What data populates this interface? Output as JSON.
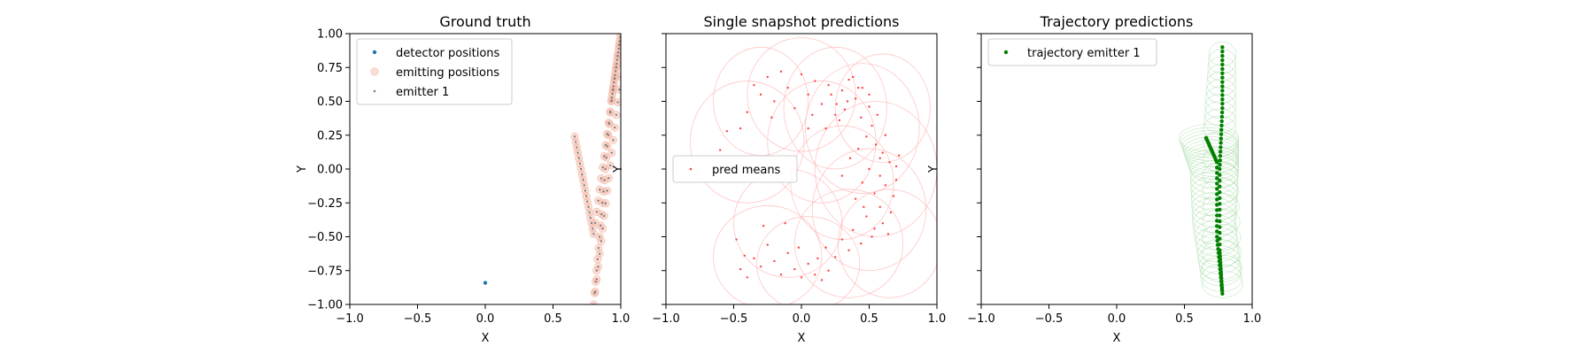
{
  "chart_data": [
    {
      "type": "scatter",
      "title": "Ground truth",
      "xlabel": "X",
      "ylabel": "Y",
      "xlim": [
        -1.0,
        1.0
      ],
      "ylim": [
        -1.0,
        1.0
      ],
      "xticks": [
        "−1.0",
        "−0.5",
        "0.0",
        "0.5",
        "1.0"
      ],
      "yticks": [
        "1.00",
        "0.75",
        "0.50",
        "0.25",
        "0.00",
        "−0.25",
        "−0.50",
        "−0.75",
        "−1.00"
      ],
      "grid": false,
      "legend_position": "upper-left",
      "series": [
        {
          "name": "detector positions",
          "color": "#1f77b4",
          "marker": "dot",
          "points": [
            [
              0.0,
              -0.84
            ]
          ]
        },
        {
          "name": "emitting positions",
          "color": "#f5b9a6",
          "marker": "circle",
          "path": [
            [
              0.66,
              0.24
            ],
            [
              0.8,
              -0.48
            ],
            [
              1.0,
              1.0
            ],
            [
              0.93,
              0.5
            ],
            [
              0.8,
              -1.0
            ],
            [
              1.0,
              0.68
            ]
          ],
          "samples_per_segment": 18
        },
        {
          "name": "emitter 1",
          "color": "#7f7f7f",
          "marker": "small-dot",
          "path": [
            [
              0.66,
              0.24
            ],
            [
              0.8,
              -0.48
            ],
            [
              1.0,
              1.0
            ],
            [
              0.93,
              0.5
            ],
            [
              0.8,
              -1.0
            ],
            [
              1.0,
              0.68
            ]
          ],
          "samples_per_segment": 18
        }
      ]
    },
    {
      "type": "scatter",
      "title": "Single snapshot predictions",
      "xlabel": "X",
      "ylabel": "Y",
      "xlim": [
        -1.0,
        1.0
      ],
      "ylim": [
        -1.0,
        1.0
      ],
      "xticks": [
        "−1.0",
        "−0.5",
        "0.0",
        "0.5",
        "1.0"
      ],
      "yticks": [
        "1.00",
        "0.75",
        "0.50",
        "0.25",
        "0.00",
        "−0.25",
        "−0.50",
        "−0.75",
        "−1.00"
      ],
      "grid": false,
      "legend_position": "center-left",
      "series": [
        {
          "name": "pred means",
          "color": "#ff4040",
          "marker": "small-dot",
          "points": [
            [
              -0.35,
              0.62
            ],
            [
              -0.3,
              0.55
            ],
            [
              -0.25,
              0.68
            ],
            [
              -0.2,
              0.5
            ],
            [
              -0.15,
              0.72
            ],
            [
              -0.1,
              0.6
            ],
            [
              -0.05,
              0.45
            ],
            [
              0.0,
              0.7
            ],
            [
              0.05,
              0.55
            ],
            [
              0.1,
              0.65
            ],
            [
              0.15,
              0.48
            ],
            [
              0.2,
              0.62
            ],
            [
              0.25,
              0.4
            ],
            [
              0.3,
              0.58
            ],
            [
              0.35,
              0.66
            ],
            [
              0.4,
              0.52
            ],
            [
              0.45,
              0.6
            ],
            [
              0.5,
              0.46
            ],
            [
              0.38,
              0.68
            ],
            [
              0.28,
              0.36
            ],
            [
              -0.45,
              0.3
            ],
            [
              -0.4,
              0.42
            ],
            [
              -0.55,
              0.28
            ],
            [
              -0.22,
              0.38
            ],
            [
              0.08,
              0.4
            ],
            [
              0.18,
              0.3
            ],
            [
              0.32,
              0.44
            ],
            [
              0.44,
              0.38
            ],
            [
              0.52,
              0.32
            ],
            [
              0.48,
              0.24
            ],
            [
              0.55,
              0.18
            ],
            [
              0.6,
              0.12
            ],
            [
              0.42,
              0.15
            ],
            [
              0.65,
              0.05
            ],
            [
              0.5,
              0.0
            ],
            [
              0.58,
              -0.05
            ],
            [
              0.7,
              0.02
            ],
            [
              0.45,
              -0.1
            ],
            [
              0.62,
              -0.12
            ],
            [
              0.54,
              -0.18
            ],
            [
              0.68,
              -0.2
            ],
            [
              0.4,
              -0.22
            ],
            [
              0.58,
              -0.28
            ],
            [
              0.66,
              -0.32
            ],
            [
              0.48,
              -0.35
            ],
            [
              0.6,
              -0.4
            ],
            [
              0.38,
              -0.45
            ],
            [
              0.52,
              -0.5
            ],
            [
              0.44,
              -0.55
            ],
            [
              0.35,
              -0.6
            ],
            [
              0.3,
              -0.52
            ],
            [
              0.25,
              -0.65
            ],
            [
              0.2,
              -0.75
            ],
            [
              0.15,
              -0.82
            ],
            [
              0.1,
              -0.78
            ],
            [
              0.05,
              -0.7
            ],
            [
              0.0,
              -0.8
            ],
            [
              -0.05,
              -0.74
            ],
            [
              -0.1,
              -0.62
            ],
            [
              -0.15,
              -0.78
            ],
            [
              -0.2,
              -0.68
            ],
            [
              -0.25,
              -0.56
            ],
            [
              -0.3,
              -0.72
            ],
            [
              -0.35,
              -0.66
            ],
            [
              -0.4,
              -0.8
            ],
            [
              -0.45,
              -0.74
            ],
            [
              -0.48,
              -0.52
            ],
            [
              -0.42,
              -0.64
            ],
            [
              -0.12,
              -0.4
            ],
            [
              -0.28,
              -0.42
            ],
            [
              0.7,
              -0.08
            ],
            [
              0.72,
              0.1
            ],
            [
              0.56,
              0.4
            ],
            [
              0.62,
              0.25
            ],
            [
              0.36,
              0.08
            ],
            [
              0.3,
              -0.05
            ],
            [
              0.46,
              -0.28
            ],
            [
              0.54,
              -0.44
            ],
            [
              0.64,
              -0.48
            ],
            [
              0.18,
              -0.58
            ],
            [
              0.12,
              -0.66
            ],
            [
              -0.02,
              -0.58
            ],
            [
              0.22,
              0.55
            ],
            [
              0.05,
              0.3
            ],
            [
              -0.6,
              0.14
            ],
            [
              0.42,
              0.6
            ],
            [
              0.34,
              0.5
            ],
            [
              0.26,
              0.48
            ],
            [
              0.5,
              0.55
            ],
            [
              0.58,
              0.08
            ]
          ],
          "ellipses": [
            [
              -0.3,
              0.5,
              0.35,
              0.4
            ],
            [
              0.0,
              0.55,
              0.4,
              0.42
            ],
            [
              0.25,
              0.45,
              0.38,
              0.45
            ],
            [
              0.45,
              0.3,
              0.42,
              0.48
            ],
            [
              0.55,
              0.0,
              0.45,
              0.5
            ],
            [
              0.5,
              -0.3,
              0.42,
              0.45
            ],
            [
              0.35,
              -0.55,
              0.4,
              0.4
            ],
            [
              0.05,
              -0.7,
              0.38,
              0.35
            ],
            [
              -0.25,
              -0.65,
              0.4,
              0.38
            ],
            [
              -0.4,
              0.2,
              0.42,
              0.45
            ],
            [
              0.15,
              0.2,
              0.4,
              0.45
            ],
            [
              0.3,
              -0.1,
              0.38,
              0.42
            ],
            [
              -0.1,
              -0.4,
              0.4,
              0.4
            ],
            [
              0.6,
              0.45,
              0.35,
              0.4
            ],
            [
              0.65,
              -0.55,
              0.38,
              0.4
            ]
          ]
        }
      ]
    },
    {
      "type": "scatter",
      "title": "Trajectory predictions",
      "xlabel": "X",
      "ylabel": "Y",
      "xlim": [
        -1.0,
        1.0
      ],
      "ylim": [
        -1.0,
        1.0
      ],
      "xticks": [
        "−1.0",
        "−0.5",
        "0.0",
        "0.5",
        "1.0"
      ],
      "yticks": [
        "1.00",
        "0.75",
        "0.50",
        "0.25",
        "0.00",
        "−0.25",
        "−0.50",
        "−0.75",
        "−1.00"
      ],
      "grid": false,
      "legend_position": "upper-left",
      "series": [
        {
          "name": "trajectory emitter 1",
          "color": "#008000",
          "marker": "dot",
          "path": [
            [
              0.66,
              0.23
            ],
            [
              0.74,
              0.05
            ],
            [
              0.74,
              -0.5
            ],
            [
              0.78,
              -0.92
            ],
            [
              0.76,
              -0.6
            ],
            [
              0.76,
              0.0
            ],
            [
              0.78,
              0.45
            ],
            [
              0.78,
              0.9
            ]
          ],
          "samples_per_segment": 14,
          "ellipse_path": [
            [
              0.68,
              0.23,
              0.22,
              0.1
            ],
            [
              0.72,
              0.0,
              0.18,
              0.1
            ],
            [
              0.72,
              -0.4,
              0.16,
              0.11
            ],
            [
              0.78,
              -0.85,
              0.15,
              0.1
            ],
            [
              0.76,
              0.3,
              0.12,
              0.09
            ],
            [
              0.78,
              0.85,
              0.1,
              0.09
            ]
          ]
        }
      ]
    }
  ]
}
